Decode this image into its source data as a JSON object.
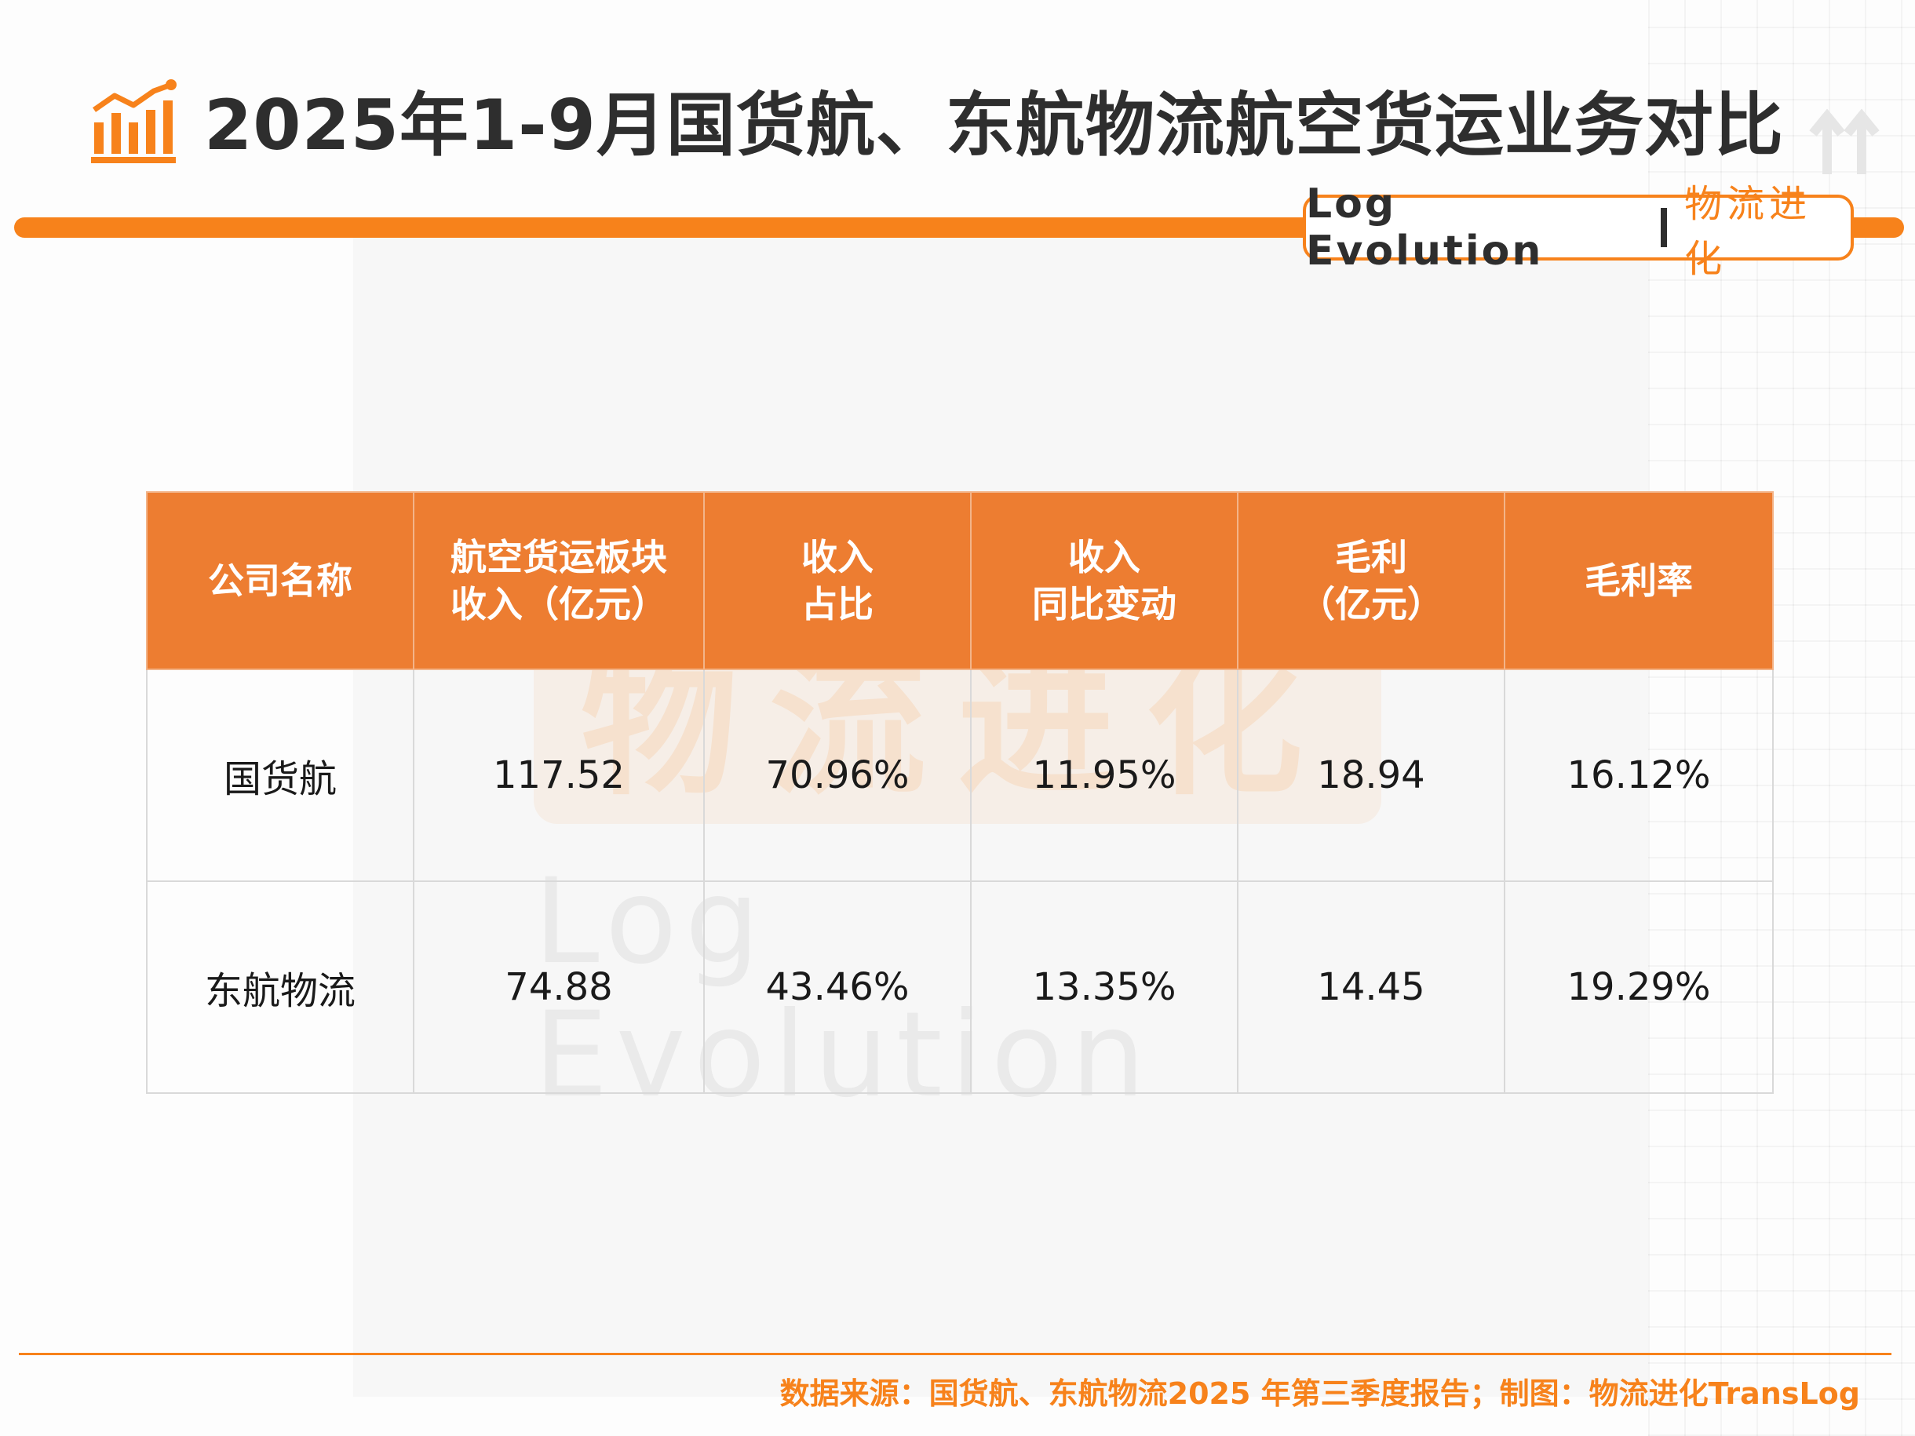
{
  "title": "2025年1-9月国货航、东航物流航空货运业务对比",
  "brand": {
    "en": "Log Evolution",
    "cn": "物流进化"
  },
  "watermark": {
    "cn": "物流进化",
    "en": "Log Evolution"
  },
  "colors": {
    "accent": "#f7821b",
    "header_fill": "#ed7d31",
    "text": "#1a1a1a"
  },
  "icons": {
    "logo": "bar-chart-trend-icon",
    "decor": "up-arrows-icon"
  },
  "chart_data": {
    "type": "table",
    "columns": [
      [
        "公司名称"
      ],
      [
        "航空货运板块",
        "收入（亿元）"
      ],
      [
        "收入",
        "占比"
      ],
      [
        "收入",
        "同比变动"
      ],
      [
        "毛利",
        "（亿元）"
      ],
      [
        "毛利率"
      ]
    ],
    "rows": [
      [
        "国货航",
        "117.52",
        "70.96%",
        "11.95%",
        "18.94",
        "16.12%"
      ],
      [
        "东航物流",
        "74.88",
        "43.46%",
        "13.35%",
        "14.45",
        "19.29%"
      ]
    ]
  },
  "footer": {
    "source": "数据来源：国货航、东航物流2025 年第三季度报告；制图：物流进化TransLog"
  }
}
